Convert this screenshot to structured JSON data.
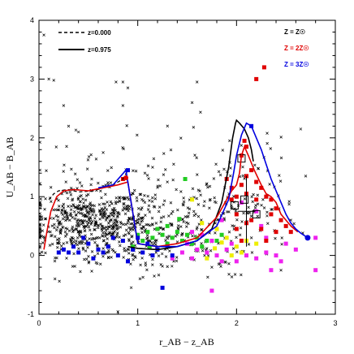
{
  "chart_data": {
    "type": "scatter",
    "title": "",
    "xlabel": "r_AB − z_AB",
    "ylabel": "U_AB − B_AB",
    "xlim": [
      0,
      3
    ],
    "ylim": [
      -1,
      4
    ],
    "x_ticks": [
      "0",
      "1",
      "2",
      "3"
    ],
    "y_ticks": [
      "-1",
      "0",
      "1",
      "2",
      "3",
      "4"
    ],
    "grid": false,
    "legend_lines": [
      {
        "label": "z=0.000",
        "style": "dashed",
        "color": "#000000"
      },
      {
        "label": "z=0.975",
        "style": "solid",
        "color": "#000000"
      }
    ],
    "legend_metallicity": [
      {
        "label": "Z = Z☉",
        "color": "#000000"
      },
      {
        "label": "Z = 2Z☉",
        "color": "#e00000"
      },
      {
        "label": "Z = 3Z☉",
        "color": "#0000e0"
      }
    ],
    "cross_clusters": [
      {
        "cx": 0.45,
        "cy": 0.55,
        "sx": 0.28,
        "sy": 0.28,
        "n": 420
      },
      {
        "cx": 1.0,
        "cy": 0.45,
        "sx": 0.35,
        "sy": 0.35,
        "n": 260
      },
      {
        "cx": 1.6,
        "cy": 0.5,
        "sx": 0.3,
        "sy": 0.45,
        "n": 120
      },
      {
        "cx": 2.1,
        "cy": 0.9,
        "sx": 0.25,
        "sy": 0.55,
        "n": 90
      },
      {
        "cx": 0.8,
        "cy": 1.2,
        "sx": 0.5,
        "sy": 0.6,
        "n": 80
      }
    ],
    "cross_outliers": [
      [
        0.05,
        3.75
      ],
      [
        0.1,
        3.0
      ],
      [
        0.15,
        2.98
      ],
      [
        0.25,
        2.55
      ],
      [
        0.3,
        2.2
      ],
      [
        0.78,
        2.95
      ],
      [
        0.85,
        2.95
      ],
      [
        0.9,
        2.85
      ],
      [
        0.85,
        2.55
      ],
      [
        1.6,
        2.95
      ],
      [
        1.55,
        2.6
      ],
      [
        2.65,
        2.15
      ],
      [
        2.7,
        1.35
      ],
      [
        0.65,
        1.75
      ],
      [
        0.4,
        2.1
      ],
      [
        1.15,
        1.5
      ],
      [
        1.3,
        1.25
      ],
      [
        2.55,
        0.6
      ],
      [
        2.45,
        -0.25
      ],
      [
        1.75,
        -0.2
      ]
    ],
    "series": [
      {
        "name": "z=0.000",
        "style": "dashed",
        "color": "#000000",
        "x": [
          0.1,
          0.15,
          0.2,
          0.3,
          0.4,
          0.55,
          0.65,
          0.75,
          0.85,
          0.9
        ],
        "y": [
          0.95,
          1.05,
          1.1,
          1.12,
          1.08,
          1.1,
          1.15,
          1.2,
          1.3,
          1.45
        ]
      },
      {
        "name": "z=0.975 (Z = Z☉)",
        "style": "solid",
        "color": "#000000",
        "x": [
          0.9,
          1.0,
          1.2,
          1.4,
          1.6,
          1.75,
          1.85,
          1.92,
          1.96,
          1.99,
          2.0,
          2.03,
          2.08,
          2.12,
          2.15,
          2.17
        ],
        "y": [
          0.15,
          0.12,
          0.1,
          0.15,
          0.25,
          0.45,
          0.9,
          1.5,
          2.0,
          2.25,
          2.3,
          2.25,
          2.15,
          2.0,
          1.8,
          1.6
        ]
      },
      {
        "name": "Z = 2Z☉",
        "style": "solid",
        "color": "#e00000",
        "x": [
          0.05,
          0.08,
          0.12,
          0.18,
          0.25,
          0.35,
          0.5,
          0.65,
          0.8,
          0.9,
          1.0,
          1.2,
          1.4,
          1.6,
          1.8,
          1.9,
          1.95,
          2.0,
          2.03,
          2.05,
          2.08,
          2.12,
          2.18,
          2.25,
          2.3,
          2.35,
          2.4,
          2.45,
          2.55,
          2.62
        ],
        "y": [
          0.1,
          0.4,
          0.75,
          1.0,
          1.1,
          1.12,
          1.1,
          1.15,
          1.2,
          1.25,
          0.2,
          0.15,
          0.2,
          0.3,
          0.65,
          0.95,
          1.1,
          1.2,
          1.4,
          1.7,
          1.85,
          1.7,
          1.45,
          1.2,
          1.05,
          1.0,
          0.9,
          0.7,
          0.5,
          0.4
        ]
      },
      {
        "name": "Z = 3Z☉",
        "style": "solid",
        "color": "#0000e0",
        "x": [
          0.6,
          0.75,
          0.88,
          1.0,
          1.2,
          1.4,
          1.6,
          1.8,
          1.92,
          1.97,
          2.0,
          2.05,
          2.1,
          2.15,
          2.2,
          2.25,
          2.3,
          2.35,
          2.4,
          2.45,
          2.5,
          2.55,
          2.6,
          2.65,
          2.72
        ],
        "y": [
          1.15,
          1.2,
          1.45,
          0.2,
          0.15,
          0.15,
          0.25,
          0.5,
          0.95,
          1.4,
          1.7,
          2.05,
          2.25,
          2.2,
          2.0,
          1.8,
          1.55,
          1.3,
          1.1,
          0.9,
          0.7,
          0.55,
          0.45,
          0.38,
          0.3
        ]
      }
    ],
    "blue_points": [
      [
        0.9,
        1.45
      ],
      [
        0.65,
        0.05
      ],
      [
        0.7,
        0.15
      ],
      [
        0.8,
        0.0
      ],
      [
        0.95,
        0.1
      ],
      [
        1.05,
        0.05
      ],
      [
        1.1,
        0.2
      ],
      [
        1.2,
        0.1
      ],
      [
        1.3,
        0.15
      ],
      [
        0.5,
        0.2
      ],
      [
        0.4,
        0.05
      ],
      [
        0.35,
        0.15
      ],
      [
        0.55,
        -0.05
      ],
      [
        0.6,
        0.1
      ],
      [
        0.85,
        0.25
      ],
      [
        1.0,
        0.3
      ],
      [
        0.75,
        0.3
      ],
      [
        1.15,
        0.0
      ],
      [
        0.45,
        0.3
      ],
      [
        0.3,
        0.05
      ],
      [
        0.25,
        0.1
      ],
      [
        1.35,
        0.0
      ],
      [
        0.2,
        0.05
      ],
      [
        0.9,
        -0.1
      ],
      [
        1.25,
        -0.55
      ],
      [
        2.72,
        0.3
      ],
      [
        2.15,
        2.2
      ]
    ],
    "green_points": [
      [
        1.05,
        0.25
      ],
      [
        1.1,
        0.4
      ],
      [
        1.15,
        0.3
      ],
      [
        1.2,
        0.45
      ],
      [
        1.25,
        0.35
      ],
      [
        1.3,
        0.5
      ],
      [
        1.35,
        0.3
      ],
      [
        1.4,
        0.4
      ],
      [
        1.45,
        0.25
      ],
      [
        1.5,
        0.35
      ],
      [
        1.55,
        0.2
      ],
      [
        1.0,
        0.35
      ],
      [
        1.6,
        0.3
      ],
      [
        1.65,
        0.15
      ],
      [
        1.7,
        0.25
      ],
      [
        0.95,
        0.15
      ],
      [
        1.3,
        0.2
      ],
      [
        1.12,
        0.15
      ],
      [
        1.8,
        0.25
      ],
      [
        1.85,
        0.35
      ],
      [
        1.48,
        1.3
      ],
      [
        1.42,
        0.62
      ]
    ],
    "yellow_points": [
      [
        1.78,
        0.12
      ],
      [
        1.85,
        0.22
      ],
      [
        1.9,
        0.3
      ],
      [
        2.0,
        0.15
      ],
      [
        2.05,
        0.05
      ],
      [
        1.95,
        0.0
      ],
      [
        1.65,
        0.55
      ],
      [
        1.7,
        -0.05
      ],
      [
        1.55,
        0.95
      ],
      [
        2.1,
        0.25
      ],
      [
        1.8,
        0.45
      ],
      [
        2.2,
        0.2
      ]
    ],
    "magenta_points": [
      [
        1.35,
        -0.05
      ],
      [
        1.45,
        0.05
      ],
      [
        1.55,
        -0.05
      ],
      [
        1.6,
        0.1
      ],
      [
        1.7,
        0.05
      ],
      [
        1.75,
        0.25
      ],
      [
        1.8,
        0.0
      ],
      [
        1.9,
        0.1
      ],
      [
        1.95,
        0.2
      ],
      [
        2.0,
        -0.1
      ],
      [
        2.1,
        0.0
      ],
      [
        2.2,
        -0.05
      ],
      [
        2.3,
        0.05
      ],
      [
        2.4,
        0.0
      ],
      [
        2.5,
        0.2
      ],
      [
        2.6,
        0.1
      ],
      [
        1.55,
        0.4
      ],
      [
        1.65,
        0.35
      ],
      [
        1.85,
        0.6
      ],
      [
        2.05,
        0.9
      ],
      [
        2.2,
        0.75
      ],
      [
        2.3,
        0.3
      ],
      [
        2.8,
        0.3
      ],
      [
        2.8,
        -0.25
      ],
      [
        1.75,
        -0.6
      ],
      [
        1.85,
        -0.1
      ],
      [
        2.35,
        -0.25
      ],
      [
        2.45,
        -0.1
      ],
      [
        1.5,
        0.2
      ],
      [
        2.25,
        0.5
      ]
    ],
    "red_points": [
      [
        0.85,
        1.3
      ],
      [
        2.0,
        1.0
      ],
      [
        2.05,
        1.2
      ],
      [
        2.1,
        1.35
      ],
      [
        2.15,
        1.45
      ],
      [
        2.2,
        1.25
      ],
      [
        2.25,
        1.15
      ],
      [
        2.3,
        1.0
      ],
      [
        2.35,
        0.95
      ],
      [
        2.1,
        1.85
      ],
      [
        2.05,
        1.7
      ],
      [
        2.08,
        1.95
      ],
      [
        2.2,
        3.0
      ],
      [
        2.28,
        3.2
      ],
      [
        2.4,
        0.8
      ],
      [
        2.45,
        0.6
      ],
      [
        2.5,
        0.5
      ],
      [
        2.55,
        0.4
      ],
      [
        1.9,
        1.3
      ],
      [
        1.95,
        1.15
      ],
      [
        2.0,
        0.7
      ],
      [
        2.15,
        0.6
      ],
      [
        2.25,
        0.45
      ],
      [
        2.3,
        0.25
      ],
      [
        1.95,
        0.95
      ],
      [
        2.1,
        1.05
      ],
      [
        2.0,
        0.45
      ],
      [
        2.1,
        0.55
      ],
      [
        2.2,
        0.95
      ],
      [
        2.35,
        0.7
      ],
      [
        2.4,
        0.4
      ],
      [
        2.05,
        0.25
      ]
    ],
    "boxed_points": [
      [
        1.98,
        0.85
      ],
      [
        2.05,
        1.65
      ],
      [
        2.08,
        0.95
      ],
      [
        2.2,
        0.7
      ]
    ],
    "error_bar": {
      "x": 2.1,
      "y": 0.75,
      "xerr": 0.09,
      "yerr": 0.6
    }
  }
}
